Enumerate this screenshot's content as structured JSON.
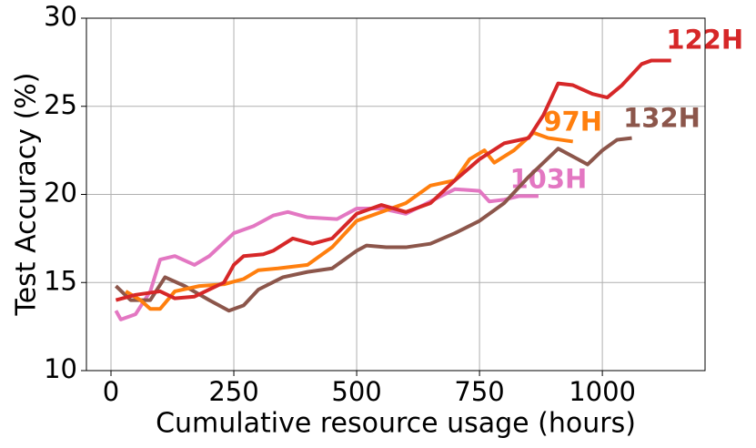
{
  "chart_data": {
    "type": "line",
    "xlabel": "Cumulative resource usage (hours)",
    "ylabel": "Test Accuracy (%)",
    "xlim": [
      -50,
      1209
    ],
    "ylim": [
      10,
      30
    ],
    "xticks": [
      0,
      250,
      500,
      750,
      1000
    ],
    "yticks": [
      10,
      15,
      20,
      25,
      30
    ],
    "grid": true,
    "series": [
      {
        "label": "103H",
        "color": "#e377c2",
        "x": [
          10,
          20,
          50,
          80,
          100,
          130,
          170,
          200,
          250,
          290,
          330,
          360,
          400,
          460,
          500,
          550,
          600,
          650,
          700,
          750,
          770,
          800,
          830,
          870
        ],
        "values": [
          13.4,
          12.9,
          13.2,
          14.5,
          16.3,
          16.5,
          16.0,
          16.5,
          17.8,
          18.2,
          18.8,
          19.0,
          18.7,
          18.6,
          19.2,
          19.2,
          18.9,
          19.6,
          20.3,
          20.2,
          19.6,
          19.7,
          19.9,
          19.9
        ]
      },
      {
        "label": "132H",
        "color": "#8c564b",
        "x": [
          10,
          40,
          80,
          110,
          150,
          200,
          240,
          270,
          300,
          350,
          400,
          450,
          500,
          520,
          560,
          600,
          650,
          700,
          750,
          800,
          850,
          880,
          910,
          950,
          970,
          1000,
          1030,
          1060
        ],
        "values": [
          14.8,
          14.0,
          14.0,
          15.3,
          14.8,
          14.0,
          13.4,
          13.7,
          14.6,
          15.3,
          15.6,
          15.8,
          16.8,
          17.1,
          17.0,
          17.0,
          17.2,
          17.8,
          18.5,
          19.5,
          21.0,
          21.8,
          22.6,
          22.0,
          21.7,
          22.5,
          23.1,
          23.2
        ]
      },
      {
        "label": "97H",
        "color": "#ff7f0e",
        "x": [
          30,
          60,
          80,
          100,
          130,
          180,
          230,
          270,
          300,
          340,
          400,
          450,
          500,
          550,
          600,
          650,
          700,
          730,
          760,
          780,
          820,
          860,
          890,
          940
        ],
        "values": [
          14.5,
          14.0,
          13.5,
          13.5,
          14.5,
          14.8,
          14.9,
          15.2,
          15.7,
          15.8,
          16.0,
          17.0,
          18.5,
          19.0,
          19.5,
          20.5,
          20.8,
          22.0,
          22.5,
          21.8,
          22.5,
          23.5,
          23.2,
          23.0
        ]
      },
      {
        "label": "122H",
        "color": "#d62728",
        "x": [
          10,
          50,
          100,
          130,
          170,
          200,
          230,
          250,
          270,
          310,
          330,
          370,
          410,
          450,
          500,
          550,
          600,
          650,
          700,
          750,
          800,
          850,
          880,
          910,
          940,
          980,
          1010,
          1040,
          1080,
          1100,
          1140
        ],
        "values": [
          14.0,
          14.3,
          14.5,
          14.1,
          14.2,
          14.6,
          15.0,
          16.0,
          16.5,
          16.6,
          16.8,
          17.5,
          17.2,
          17.5,
          18.9,
          19.4,
          19.0,
          19.5,
          20.8,
          22.0,
          22.9,
          23.2,
          24.5,
          26.3,
          26.2,
          25.7,
          25.5,
          26.2,
          27.4,
          27.6,
          27.6
        ]
      }
    ]
  }
}
